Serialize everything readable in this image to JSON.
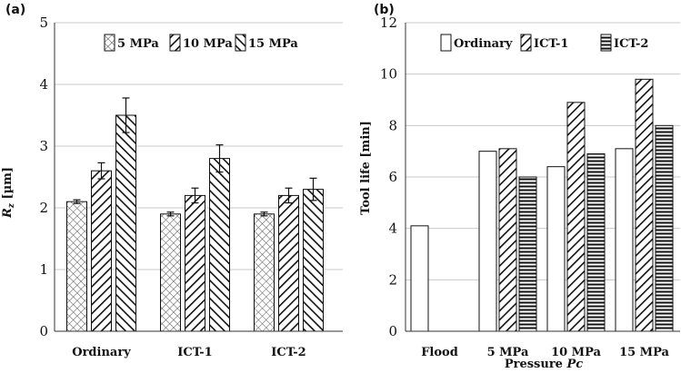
{
  "chart_data": [
    {
      "panel_label": "(a)",
      "type": "bar",
      "categories": [
        "Ordinary",
        "ICT-1",
        "ICT-2"
      ],
      "series": [
        {
          "name": "5 MPa",
          "pattern": "crosshatch",
          "values": [
            2.1,
            1.9,
            1.9
          ],
          "errors": [
            0.03,
            0.03,
            0.03
          ]
        },
        {
          "name": "10 MPa",
          "pattern": "diag-right",
          "values": [
            2.6,
            2.2,
            2.2
          ],
          "errors": [
            0.13,
            0.12,
            0.12
          ]
        },
        {
          "name": "15 MPa",
          "pattern": "diag-left",
          "values": [
            3.5,
            2.8,
            2.3
          ],
          "errors": [
            0.28,
            0.22,
            0.18
          ]
        }
      ],
      "xlabel": "",
      "ylabel": "Rz [µm]",
      "ylabel_main": "R",
      "ylabel_sub": "z",
      "ylabel_unit": " [µm]",
      "ylim": [
        0,
        5
      ],
      "yticks": [
        "0",
        "1",
        "2",
        "3",
        "4",
        "5"
      ],
      "grid": true,
      "legend_position": "top-right"
    },
    {
      "panel_label": "(b)",
      "type": "bar",
      "categories": [
        "Flood",
        "5 MPa",
        "10 MPa",
        "15 MPa"
      ],
      "series": [
        {
          "name": "Ordinary",
          "pattern": "white",
          "values": [
            4.1,
            7.0,
            6.4,
            7.1
          ]
        },
        {
          "name": "ICT-1",
          "pattern": "diag-right",
          "values": [
            null,
            7.1,
            8.9,
            9.8
          ]
        },
        {
          "name": "ICT-2",
          "pattern": "horizontal",
          "values": [
            null,
            6.0,
            6.9,
            8.0
          ]
        }
      ],
      "xlabel": "Pressure Pc",
      "xlabel_main": "Pressure ",
      "xlabel_italic": "Pc",
      "ylabel": "Tool life [min]",
      "ylim": [
        0,
        12
      ],
      "yticks": [
        "0",
        "2",
        "4",
        "6",
        "8",
        "10",
        "12"
      ],
      "grid": true,
      "legend_position": "top"
    }
  ]
}
